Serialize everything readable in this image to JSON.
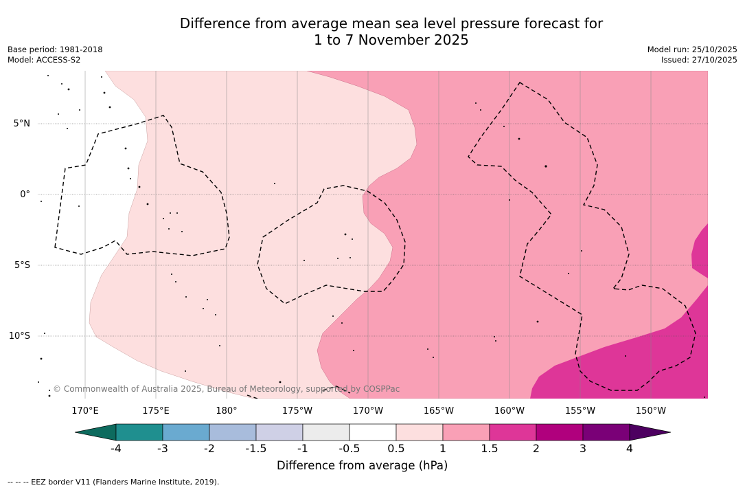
{
  "title": {
    "line1": "Difference from average mean sea level pressure forecast for",
    "line2": "1 to 7 November 2025"
  },
  "meta": {
    "base_period": "Base period: 1981-2018",
    "model": "Model: ACCESS-S2",
    "model_run": "Model run: 25/10/2025",
    "issued": "Issued: 27/10/2025"
  },
  "map": {
    "lat_labels": [
      "5°N",
      "0°",
      "5°S",
      "10°S"
    ],
    "lon_labels": [
      "170°E",
      "175°E",
      "180°",
      "175°W",
      "170°W",
      "165°W",
      "160°W",
      "155°W",
      "150°W"
    ],
    "copyright": "© Commonwealth of Australia 2025, Bureau of Meteorology, supported by COSPPac"
  },
  "colorbar": {
    "ticks": [
      "-4",
      "-3",
      "-2",
      "-1.5",
      "-1",
      "-0.5",
      "0.5",
      "1",
      "1.5",
      "2",
      "3",
      "4"
    ],
    "colors": {
      "lt_-4": "#0d6b5e",
      "-4_-3": "#1f8f8f",
      "-3_-2": "#6aaad0",
      "-2_-1.5": "#a8bcdc",
      "-1.5_-1": "#cfd0e6",
      "-1_-0.5": "#ececec",
      "-0.5_0.5": "#ffffff",
      "0.5_1": "#fddfdf",
      "1_1.5": "#f9a0b6",
      "1.5_2": "#de3698",
      "2_3": "#b0007d",
      "3_4": "#7a0077",
      "gt_4": "#4d0060"
    },
    "label": "Difference from average (hPa)"
  },
  "footnote": "--  --  -- EEZ border V11 (Flanders Marine Institute, 2019)."
}
